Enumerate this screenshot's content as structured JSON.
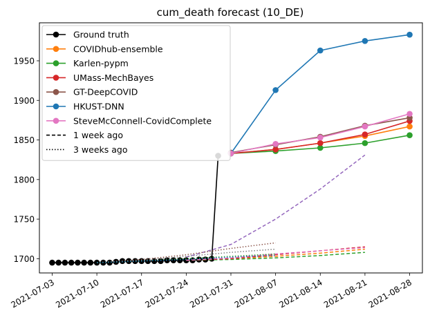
{
  "chart_data": {
    "type": "line",
    "title": "cum_death forecast (10_DE)",
    "xlabel": "",
    "ylabel": "",
    "x_ticks": [
      "2021-07-03",
      "2021-07-10",
      "2021-07-17",
      "2021-07-24",
      "2021-07-31",
      "2021-08-07",
      "2021-08-14",
      "2021-08-21",
      "2021-08-28"
    ],
    "y_ticks": [
      1700,
      1750,
      1800,
      1850,
      1900,
      1950
    ],
    "xlim": [
      "2021-07-01",
      "2021-08-30"
    ],
    "ylim": [
      1682,
      1998
    ],
    "grid": false,
    "legend_position": "top-left",
    "series": [
      {
        "name": "Ground truth",
        "color": "#000000",
        "style": "solid",
        "marker": true,
        "points": [
          [
            "2021-07-03",
            1695
          ],
          [
            "2021-07-04",
            1695
          ],
          [
            "2021-07-05",
            1695
          ],
          [
            "2021-07-06",
            1695
          ],
          [
            "2021-07-07",
            1695
          ],
          [
            "2021-07-08",
            1695
          ],
          [
            "2021-07-09",
            1695
          ],
          [
            "2021-07-10",
            1695
          ],
          [
            "2021-07-11",
            1695
          ],
          [
            "2021-07-12",
            1695
          ],
          [
            "2021-07-13",
            1696
          ],
          [
            "2021-07-14",
            1697
          ],
          [
            "2021-07-15",
            1697
          ],
          [
            "2021-07-16",
            1697
          ],
          [
            "2021-07-17",
            1697
          ],
          [
            "2021-07-18",
            1697
          ],
          [
            "2021-07-19",
            1697
          ],
          [
            "2021-07-20",
            1697
          ],
          [
            "2021-07-21",
            1698
          ],
          [
            "2021-07-22",
            1698
          ],
          [
            "2021-07-23",
            1698
          ],
          [
            "2021-07-24",
            1698
          ],
          [
            "2021-07-25",
            1698
          ],
          [
            "2021-07-26",
            1699
          ],
          [
            "2021-07-27",
            1699
          ],
          [
            "2021-07-28",
            1700
          ],
          [
            "2021-07-29",
            1830
          ]
        ]
      },
      {
        "name": "COVIDhub-ensemble",
        "color": "#ff7f0e",
        "style": "solid",
        "marker": true,
        "points": [
          [
            "2021-07-31",
            1833
          ],
          [
            "2021-08-07",
            1838
          ],
          [
            "2021-08-14",
            1846
          ],
          [
            "2021-08-21",
            1855
          ],
          [
            "2021-08-28",
            1867
          ]
        ]
      },
      {
        "name": "Karlen-pypm",
        "color": "#2ca02c",
        "style": "solid",
        "marker": true,
        "points": [
          [
            "2021-07-31",
            1833
          ],
          [
            "2021-08-07",
            1836
          ],
          [
            "2021-08-14",
            1840
          ],
          [
            "2021-08-21",
            1846
          ],
          [
            "2021-08-28",
            1856
          ]
        ]
      },
      {
        "name": "UMass-MechBayes",
        "color": "#d62728",
        "style": "solid",
        "marker": true,
        "points": [
          [
            "2021-07-31",
            1833
          ],
          [
            "2021-08-07",
            1838
          ],
          [
            "2021-08-14",
            1846
          ],
          [
            "2021-08-21",
            1857
          ],
          [
            "2021-08-28",
            1874
          ]
        ]
      },
      {
        "name": "GT-DeepCOVID",
        "color": "#8c564b",
        "style": "solid",
        "marker": true,
        "points": [
          [
            "2021-07-31",
            1834
          ],
          [
            "2021-08-07",
            1844
          ],
          [
            "2021-08-14",
            1854
          ],
          [
            "2021-08-21",
            1868
          ],
          [
            "2021-08-28",
            1878
          ]
        ]
      },
      {
        "name": "HKUST-DNN",
        "color": "#1f77b4",
        "style": "solid",
        "marker": true,
        "points": [
          [
            "2021-07-31",
            1833
          ],
          [
            "2021-08-07",
            1913
          ],
          [
            "2021-08-14",
            1963
          ],
          [
            "2021-08-21",
            1975
          ],
          [
            "2021-08-28",
            1983
          ]
        ]
      },
      {
        "name": "SteveMcConnell-CovidComplete",
        "color": "#e377c2",
        "style": "solid",
        "marker": true,
        "points": [
          [
            "2021-07-31",
            1833
          ],
          [
            "2021-08-07",
            1845
          ],
          [
            "2021-08-14",
            1853
          ],
          [
            "2021-08-21",
            1867
          ],
          [
            "2021-08-28",
            1883
          ]
        ]
      },
      {
        "color": "#9467bd",
        "style": "dashed",
        "marker": false,
        "points": [
          [
            "2021-07-24",
            1702
          ],
          [
            "2021-07-31",
            1718
          ],
          [
            "2021-08-07",
            1750
          ],
          [
            "2021-08-14",
            1788
          ],
          [
            "2021-08-21",
            1831
          ]
        ]
      },
      {
        "color": "#ff7f0e",
        "style": "dashed",
        "marker": false,
        "points": [
          [
            "2021-07-24",
            1698
          ],
          [
            "2021-07-31",
            1700
          ],
          [
            "2021-08-07",
            1703
          ],
          [
            "2021-08-14",
            1707
          ],
          [
            "2021-08-21",
            1712
          ]
        ]
      },
      {
        "color": "#2ca02c",
        "style": "dashed",
        "marker": false,
        "points": [
          [
            "2021-07-24",
            1698
          ],
          [
            "2021-07-31",
            1699
          ],
          [
            "2021-08-07",
            1701
          ],
          [
            "2021-08-14",
            1704
          ],
          [
            "2021-08-21",
            1708
          ]
        ]
      },
      {
        "color": "#d62728",
        "style": "dashed",
        "marker": false,
        "points": [
          [
            "2021-07-24",
            1698
          ],
          [
            "2021-07-31",
            1700
          ],
          [
            "2021-08-07",
            1705
          ],
          [
            "2021-08-14",
            1710
          ],
          [
            "2021-08-21",
            1715
          ]
        ]
      },
      {
        "color": "#e377c2",
        "style": "dashed",
        "marker": false,
        "points": [
          [
            "2021-07-24",
            1698
          ],
          [
            "2021-07-31",
            1701
          ],
          [
            "2021-08-07",
            1706
          ],
          [
            "2021-08-14",
            1710
          ],
          [
            "2021-08-21",
            1714
          ]
        ]
      },
      {
        "color": "#8c564b",
        "style": "dotted",
        "marker": false,
        "points": [
          [
            "2021-07-10",
            1695
          ],
          [
            "2021-07-17",
            1699
          ],
          [
            "2021-07-24",
            1705
          ],
          [
            "2021-07-31",
            1713
          ],
          [
            "2021-08-07",
            1720
          ]
        ]
      },
      {
        "color": "#7f7f7f",
        "style": "dotted",
        "marker": false,
        "points": [
          [
            "2021-07-10",
            1695
          ],
          [
            "2021-07-17",
            1698
          ],
          [
            "2021-07-24",
            1703
          ],
          [
            "2021-07-31",
            1708
          ],
          [
            "2021-08-07",
            1712
          ]
        ]
      },
      {
        "color": "#2ca02c",
        "style": "dotted",
        "marker": false,
        "points": [
          [
            "2021-07-10",
            1695
          ],
          [
            "2021-07-17",
            1697
          ],
          [
            "2021-07-24",
            1700
          ],
          [
            "2021-07-31",
            1703
          ],
          [
            "2021-08-07",
            1706
          ]
        ]
      },
      {
        "color": "#1f77b4",
        "style": "dotted",
        "marker": false,
        "points": [
          [
            "2021-07-10",
            1695
          ],
          [
            "2021-07-17",
            1697
          ],
          [
            "2021-07-24",
            1699
          ],
          [
            "2021-07-31",
            1702
          ],
          [
            "2021-08-07",
            1704
          ]
        ]
      }
    ],
    "legend": [
      {
        "label": "Ground truth",
        "color": "#000000",
        "style": "solid",
        "marker": true
      },
      {
        "label": "COVIDhub-ensemble",
        "color": "#ff7f0e",
        "style": "solid",
        "marker": true
      },
      {
        "label": "Karlen-pypm",
        "color": "#2ca02c",
        "style": "solid",
        "marker": true
      },
      {
        "label": "UMass-MechBayes",
        "color": "#d62728",
        "style": "solid",
        "marker": true
      },
      {
        "label": "GT-DeepCOVID",
        "color": "#8c564b",
        "style": "solid",
        "marker": true
      },
      {
        "label": "HKUST-DNN",
        "color": "#1f77b4",
        "style": "solid",
        "marker": true
      },
      {
        "label": "SteveMcConnell-CovidComplete",
        "color": "#e377c2",
        "style": "solid",
        "marker": true
      },
      {
        "label": "1 week ago",
        "color": "#000000",
        "style": "dashed",
        "marker": false
      },
      {
        "label": "3 weeks ago",
        "color": "#000000",
        "style": "dotted",
        "marker": false
      }
    ]
  }
}
